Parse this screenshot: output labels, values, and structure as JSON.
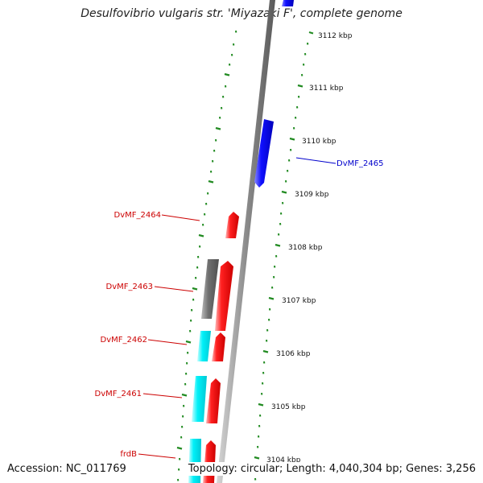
{
  "title": "Desulfovibrio vulgaris str. 'Miyazaki F', complete genome",
  "accession": "Accession: NC_011769",
  "topology": "Topology: circular; Length: 4,040,304 bp; Genes: 3,256",
  "kbp_labels": [
    "3112 kbp",
    "3111 kbp",
    "3110 kbp",
    "3109 kbp",
    "3108 kbp",
    "3107 kbp",
    "3106 kbp",
    "3105 kbp",
    "3104 kbp"
  ],
  "gene_labels": [
    {
      "text": "DvMF_2465",
      "color": "#0000cc"
    },
    {
      "text": "DvMF_2464",
      "color": "#cc0000"
    },
    {
      "text": "DvMF_2463",
      "color": "#cc0000"
    },
    {
      "text": "DvMF_2462",
      "color": "#cc0000"
    },
    {
      "text": "DvMF_2461",
      "color": "#cc0000"
    },
    {
      "text": "frdB",
      "color": "#cc0000"
    }
  ],
  "colors": {
    "forward_gene": "#ff0000",
    "reverse_gene": "#0000ff",
    "cyan_feature": "#00e5ee",
    "gray_feature": "#6e6e6e",
    "tick": "#228b22",
    "backbone": "#8c8c8c"
  }
}
